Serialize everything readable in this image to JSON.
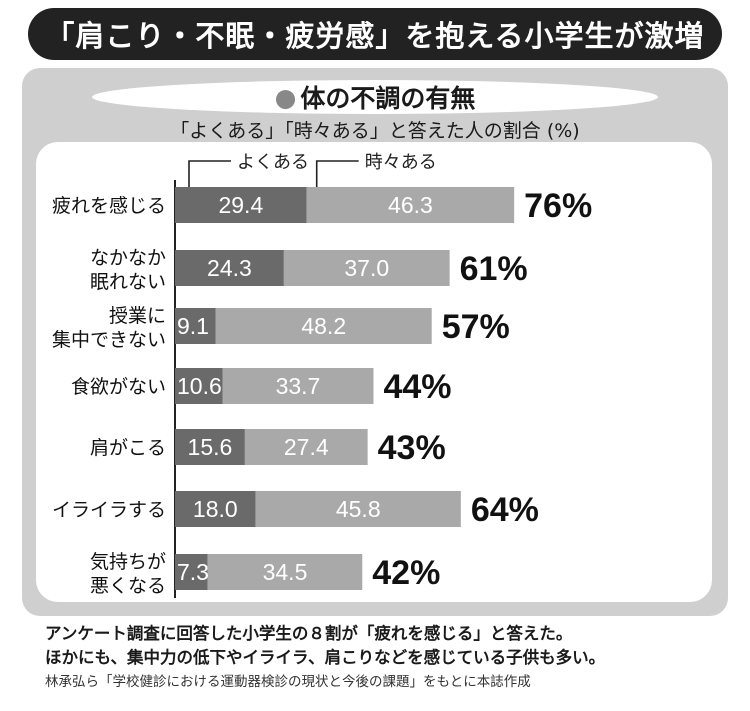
{
  "title": "「肩こり・不眠・疲労感」を抱える小学生が激増",
  "header": {
    "dot": "●",
    "title": "体の不調の有無"
  },
  "subtitle": "「よくある」「時々ある」と答えた人の割合 (%)",
  "chart_data": {
    "type": "bar",
    "stacked": true,
    "orientation": "horizontal",
    "categories": [
      [
        "疲れを感じる"
      ],
      [
        "なかなか",
        "眠れない"
      ],
      [
        "授業に",
        "集中できない"
      ],
      [
        "食欲がない"
      ],
      [
        "肩がこる"
      ],
      [
        "イライラする"
      ],
      [
        "気持ちが",
        "悪くなる"
      ]
    ],
    "series": [
      {
        "name": "よくある",
        "values": [
          29.4,
          24.3,
          9.1,
          10.6,
          15.6,
          18.0,
          7.3
        ],
        "color": "#6a6a6a"
      },
      {
        "name": "時々ある",
        "values": [
          46.3,
          37.0,
          48.2,
          33.7,
          27.4,
          45.8,
          34.5
        ],
        "color": "#a9a9a9"
      }
    ],
    "value_labels": [
      [
        "29.4",
        "24.3",
        "9.1",
        "10.6",
        "15.6",
        "18.0",
        "7.3"
      ],
      [
        "46.3",
        "37.0",
        "48.2",
        "33.7",
        "27.4",
        "45.8",
        "34.5"
      ]
    ],
    "totals": [
      "76%",
      "61%",
      "57%",
      "44%",
      "43%",
      "64%",
      "42%"
    ]
  },
  "footer": {
    "line1": "アンケート調査に回答した小学生の８割が「疲れを感じる」と答えた。",
    "line2": "ほかにも、集中力の低下やイライラ、肩こりなどを感じている子供も多い。"
  },
  "source": "林承弘ら「学校健診における運動器検診の現状と今後の課題」をもとに本誌作成"
}
